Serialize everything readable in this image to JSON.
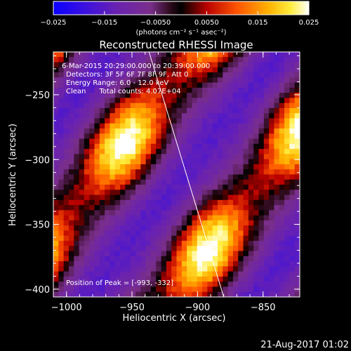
{
  "colorbar": {
    "ticks": [
      "−0.025",
      "−0.015",
      "−0.0050",
      "0.0050",
      "0.015",
      "0.025"
    ],
    "tick_values": [
      -0.025,
      -0.015,
      -0.005,
      0.005,
      0.015,
      0.025
    ],
    "range": [
      -0.025,
      0.025
    ],
    "unit_label": "(photons cm⁻² s⁻¹ asec⁻²)"
  },
  "chart_data": {
    "type": "heatmap",
    "title": "Reconstructed RHESSI Image",
    "xlabel": "Heliocentric X (arcsec)",
    "ylabel": "Heliocentric Y (arcsec)",
    "xlim": [
      -1010,
      -822
    ],
    "ylim": [
      -406,
      -217
    ],
    "x_ticks": [
      -1000,
      -950,
      -900,
      -850
    ],
    "x_tick_labels": [
      "−1000",
      "−950",
      "−900",
      "−850"
    ],
    "y_ticks": [
      -400,
      -350,
      -300,
      -250
    ],
    "y_tick_labels": [
      "−400",
      "−350",
      "−300",
      "−250"
    ],
    "colormap": "rhessi-heat (blue-purple-black-red-orange-yellow-white)",
    "annotations": [
      "6-Mar-2015 20:29:00.000 to 20:39:00.000",
      "Detectors: 3F 5F 6F 7F 8F 9F, Att 0",
      "Energy Range: 6.0 - 12.0 keV",
      "Clean      Total counts: 4.07E+04"
    ],
    "peak_text": "Position of Peak = [-993, -332]",
    "limb_line": [
      [
        -937,
        -217
      ],
      [
        -880,
        -406
      ]
    ],
    "stripes": {
      "orientation": "diagonal, rising toward upper-right",
      "peak_position": [
        -993,
        -332
      ]
    }
  },
  "footer": {
    "date": "21-Aug-2017 01:02"
  }
}
